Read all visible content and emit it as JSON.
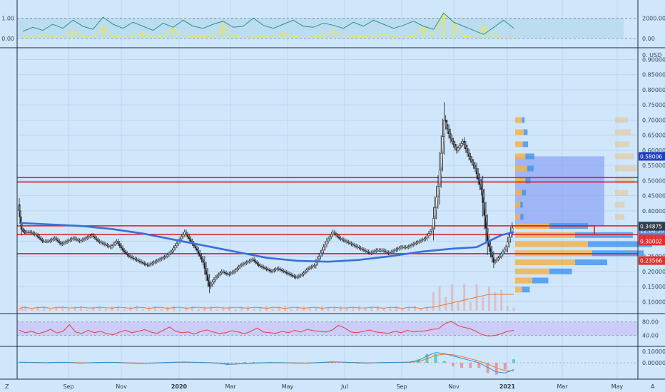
{
  "chart_data": [
    {
      "type": "line",
      "panel": "oscillator-top",
      "title": "",
      "y_ticks_left": [
        "1.00",
        "0.00"
      ],
      "y_ticks_right": [
        "2000.00",
        "0.00"
      ],
      "series": [
        {
          "values": [
            0.35,
            0.55,
            0.4,
            0.7,
            0.5,
            0.9,
            0.6,
            0.45,
            1.05,
            0.7,
            0.5,
            0.8,
            0.6,
            0.4,
            0.75,
            0.55,
            0.9,
            0.6,
            0.5,
            0.7,
            0.85,
            0.55,
            0.6,
            1.0,
            0.65,
            0.5,
            0.7,
            0.9,
            0.6,
            0.55,
            0.75,
            0.65,
            0.5,
            0.8,
            0.6,
            0.9,
            0.7,
            0.5,
            0.65,
            0.85,
            0.6,
            0.45,
            1.25,
            0.8,
            0.6,
            0.4,
            0.2,
            0.55,
            0.9,
            0.5
          ]
        },
        {
          "values": [
            0.1,
            0.05,
            0.2,
            0.08,
            0.05,
            0.4,
            0.1,
            0.05,
            0.6,
            0.1,
            0.05,
            0.08,
            0.3,
            0.05,
            0.1,
            0.5,
            0.05,
            0.08,
            0.1,
            0.05,
            0.7,
            0.1,
            0.05,
            0.08,
            0.1,
            0.05,
            0.3,
            0.1,
            0.05,
            0.08,
            0.1,
            0.4,
            0.05,
            0.08,
            0.1,
            0.05,
            0.2,
            0.08,
            0.05,
            0.1,
            0.6,
            0.1,
            1.2,
            0.8,
            0.1,
            0.05,
            0.6,
            0.1,
            0.05,
            0.08
          ]
        }
      ],
      "dashed_levels": [
        1.0,
        0.0
      ]
    },
    {
      "type": "candlestick",
      "panel": "price",
      "currency": "USD",
      "x_tick_labels": [
        "Z",
        "Sep",
        "Nov",
        "2020",
        "Mar",
        "May",
        "Jul",
        "Sep",
        "Nov",
        "2021",
        "Mar",
        "May",
        "A"
      ],
      "y_ticks": [
        "0.90000",
        "0.85000",
        "0.80000",
        "0.75000",
        "0.70000",
        "0.65000",
        "0.60000",
        "0.55000",
        "0.50000",
        "0.45000",
        "0.40000",
        "0.35000",
        "0.30000",
        "0.25000",
        "0.20000",
        "0.15000",
        "0.10000"
      ],
      "y_axis_currency": "USD",
      "ylim": [
        0.07,
        0.92
      ],
      "close_path": [
        [
          0,
          0.42
        ],
        [
          0.5,
          0.34
        ],
        [
          1,
          0.33
        ],
        [
          2,
          0.33
        ],
        [
          3,
          0.32
        ],
        [
          4,
          0.3
        ],
        [
          5,
          0.3
        ],
        [
          6,
          0.31
        ],
        [
          7,
          0.29
        ],
        [
          8,
          0.3
        ],
        [
          9,
          0.31
        ],
        [
          10,
          0.3
        ],
        [
          11,
          0.31
        ],
        [
          12,
          0.32
        ],
        [
          13,
          0.3
        ],
        [
          14,
          0.29
        ],
        [
          15,
          0.28
        ],
        [
          16,
          0.3
        ],
        [
          17,
          0.27
        ],
        [
          18,
          0.25
        ],
        [
          19,
          0.24
        ],
        [
          20,
          0.23
        ],
        [
          21,
          0.22
        ],
        [
          22,
          0.23
        ],
        [
          23,
          0.24
        ],
        [
          24,
          0.25
        ],
        [
          25,
          0.27
        ],
        [
          26,
          0.3
        ],
        [
          27,
          0.33
        ],
        [
          28,
          0.3
        ],
        [
          29,
          0.27
        ],
        [
          30,
          0.23
        ],
        [
          31,
          0.15
        ],
        [
          32,
          0.18
        ],
        [
          33,
          0.2
        ],
        [
          34,
          0.19
        ],
        [
          35,
          0.2
        ],
        [
          36,
          0.22
        ],
        [
          37,
          0.23
        ],
        [
          38,
          0.24
        ],
        [
          39,
          0.22
        ],
        [
          40,
          0.21
        ],
        [
          41,
          0.2
        ],
        [
          42,
          0.21
        ],
        [
          43,
          0.2
        ],
        [
          44,
          0.19
        ],
        [
          45,
          0.18
        ],
        [
          46,
          0.19
        ],
        [
          47,
          0.21
        ],
        [
          48,
          0.22
        ],
        [
          49,
          0.26
        ],
        [
          50,
          0.3
        ],
        [
          51,
          0.33
        ],
        [
          52,
          0.31
        ],
        [
          53,
          0.3
        ],
        [
          54,
          0.29
        ],
        [
          55,
          0.28
        ],
        [
          56,
          0.27
        ],
        [
          57,
          0.26
        ],
        [
          58,
          0.27
        ],
        [
          59,
          0.27
        ],
        [
          60,
          0.26
        ],
        [
          61,
          0.27
        ],
        [
          62,
          0.28
        ],
        [
          63,
          0.28
        ],
        [
          64,
          0.29
        ],
        [
          65,
          0.3
        ],
        [
          66,
          0.31
        ],
        [
          67,
          0.34
        ],
        [
          68,
          0.48
        ],
        [
          69,
          0.7
        ],
        [
          70,
          0.64
        ],
        [
          71,
          0.6
        ],
        [
          72,
          0.63
        ],
        [
          73,
          0.58
        ],
        [
          74,
          0.54
        ],
        [
          75,
          0.47
        ],
        [
          76,
          0.3
        ],
        [
          77,
          0.23
        ],
        [
          78,
          0.25
        ],
        [
          79,
          0.28
        ],
        [
          80,
          0.345
        ]
      ],
      "ma_blue": [
        [
          0,
          0.36
        ],
        [
          5,
          0.355
        ],
        [
          10,
          0.35
        ],
        [
          15,
          0.34
        ],
        [
          20,
          0.325
        ],
        [
          25,
          0.305
        ],
        [
          30,
          0.285
        ],
        [
          35,
          0.265
        ],
        [
          40,
          0.245
        ],
        [
          45,
          0.235
        ],
        [
          50,
          0.232
        ],
        [
          55,
          0.238
        ],
        [
          60,
          0.25
        ],
        [
          65,
          0.265
        ],
        [
          70,
          0.275
        ],
        [
          74,
          0.28
        ],
        [
          76,
          0.3
        ],
        [
          78,
          0.32
        ],
        [
          80,
          0.33
        ]
      ],
      "horizontal_levels": [
        0.5105,
        0.4955,
        0.3505,
        0.3225,
        0.2585
      ],
      "position_box": {
        "entry": 0.3507,
        "target": 0.58006
      },
      "price_badges": [
        {
          "label": "0.58006",
          "value": 0.58006,
          "color": "#1f3fc2"
        },
        {
          "label": "0.35065",
          "value": 0.35065,
          "color": "#5b8cd8"
        },
        {
          "label": "12:08:58",
          "value": 0.335,
          "color": "#5b8cd8"
        },
        {
          "label": "0.34875",
          "value": 0.34875,
          "color": "#2e3b48"
        },
        {
          "label": "0.30737",
          "value": 0.30737,
          "color": "#e03131"
        },
        {
          "label": "0.30002",
          "value": 0.30002,
          "color": "#e03131"
        },
        {
          "label": "0.23566",
          "value": 0.23566,
          "color": "#e03131"
        }
      ],
      "volume_profile": [
        {
          "price": 0.7,
          "orange": 8,
          "blue": 4
        },
        {
          "price": 0.66,
          "orange": 10,
          "blue": 6
        },
        {
          "price": 0.62,
          "orange": 9,
          "blue": 8
        },
        {
          "price": 0.58,
          "orange": 12,
          "blue": 14
        },
        {
          "price": 0.54,
          "orange": 14,
          "blue": 10
        },
        {
          "price": 0.5,
          "orange": 12,
          "blue": 8
        },
        {
          "price": 0.46,
          "orange": 8,
          "blue": 6
        },
        {
          "price": 0.42,
          "orange": 6,
          "blue": 4
        },
        {
          "price": 0.38,
          "orange": 6,
          "blue": 5
        },
        {
          "price": 0.35,
          "orange": 40,
          "blue": 60
        },
        {
          "price": 0.32,
          "orange": 70,
          "blue": 90
        },
        {
          "price": 0.29,
          "orange": 85,
          "blue": 100
        },
        {
          "price": 0.26,
          "orange": 90,
          "blue": 80
        },
        {
          "price": 0.23,
          "orange": 70,
          "blue": 50
        },
        {
          "price": 0.2,
          "orange": 40,
          "blue": 35
        },
        {
          "price": 0.17,
          "orange": 20,
          "blue": 25
        },
        {
          "price": 0.14,
          "orange": 8,
          "blue": 12
        }
      ]
    },
    {
      "type": "line",
      "panel": "rsi",
      "y_ticks": [
        "80.00",
        "40.00"
      ],
      "band": [
        40,
        80
      ],
      "values": [
        55,
        48,
        52,
        45,
        50,
        58,
        47,
        52,
        72,
        50,
        46,
        55,
        48,
        52,
        45,
        42,
        50,
        55,
        48,
        52,
        57,
        50,
        46,
        55,
        65,
        52,
        48,
        50,
        44,
        52,
        56,
        50,
        46,
        48,
        54,
        50,
        45,
        52,
        62,
        50,
        48,
        46,
        52,
        48,
        55,
        50,
        58,
        54,
        52,
        50,
        56,
        70,
        62,
        50,
        48,
        52,
        56,
        50,
        48,
        46,
        52,
        48,
        55,
        50,
        52,
        54,
        58,
        60,
        75,
        82,
        70,
        64,
        60,
        52,
        42,
        38,
        40,
        45,
        52,
        55
      ]
    },
    {
      "type": "line",
      "panel": "macd",
      "y_ticks": [
        "0.10000",
        "0.00000"
      ],
      "macd": [
        0.005,
        0.003,
        0.002,
        0.0,
        0.003,
        0.004,
        0.002,
        -0.002,
        0.0,
        0.002,
        0.004,
        0.003,
        0.0,
        -0.003,
        -0.005,
        -0.003,
        0.0,
        0.003,
        0.005,
        0.006,
        0.004,
        0.002,
        0.0,
        -0.004,
        -0.015,
        -0.012,
        -0.006,
        -0.002,
        0.0,
        0.002,
        0.001,
        0.0,
        -0.002,
        -0.003,
        0.0,
        0.004,
        0.008,
        0.006,
        0.003,
        0.0,
        -0.002,
        0.0,
        0.002,
        0.003,
        0.004,
        0.006,
        0.02,
        0.06,
        0.09,
        0.08,
        0.06,
        0.04,
        0.02,
        0.0,
        -0.04,
        -0.08,
        -0.09,
        -0.06
      ],
      "signal": [
        0.004,
        0.003,
        0.002,
        0.001,
        0.002,
        0.003,
        0.002,
        0.0,
        0.0,
        0.001,
        0.003,
        0.003,
        0.001,
        -0.001,
        -0.003,
        -0.003,
        -0.001,
        0.001,
        0.003,
        0.005,
        0.004,
        0.003,
        0.001,
        -0.002,
        -0.008,
        -0.01,
        -0.008,
        -0.004,
        -0.001,
        0.001,
        0.001,
        0.0,
        -0.001,
        -0.002,
        -0.001,
        0.002,
        0.005,
        0.006,
        0.004,
        0.002,
        0.0,
        0.0,
        0.001,
        0.002,
        0.003,
        0.004,
        0.01,
        0.035,
        0.065,
        0.075,
        0.07,
        0.055,
        0.035,
        0.015,
        -0.01,
        -0.045,
        -0.07,
        -0.07
      ]
    }
  ],
  "axis": {
    "currency_label": "USD",
    "x_ticks": [
      "Sep",
      "Nov",
      "2020",
      "Mar",
      "May",
      "Jul",
      "Sep",
      "Nov",
      "2021",
      "Mar",
      "May"
    ],
    "left_corner": "Z",
    "right_corner": "A"
  },
  "colors": {
    "background": "#cfe6fb",
    "grid": "#b9d3ee",
    "candle": "#1b1b1b",
    "ma_blue": "#3a6fd8",
    "level_red": "#e0192b",
    "rsi_line": "#e0403a",
    "rsi_band": "#c9c6f7",
    "macd_line": "#2f8fd0",
    "macd_signal": "#f07a2a",
    "osc_teal": "#2a8f95",
    "osc_yellow": "#e7e84b",
    "profile_orange": "#f3b24b",
    "profile_blue": "#3d94f0",
    "target_box": "#8fa6f6"
  }
}
